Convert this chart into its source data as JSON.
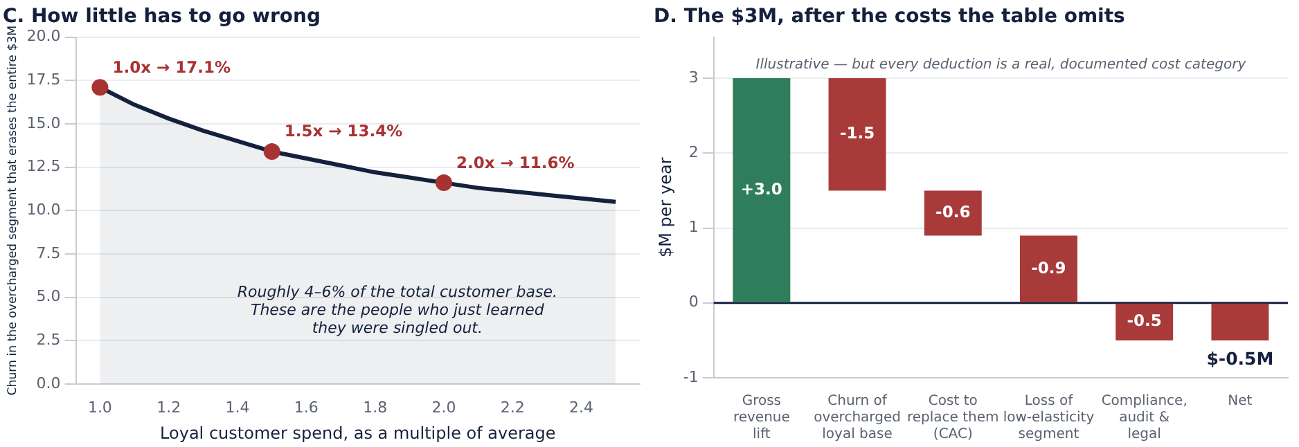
{
  "chart_data": [
    {
      "type": "area",
      "title": "C. How little has to go wrong",
      "xlabel": "Loyal customer spend, as a multiple of average",
      "ylabel": "Churn in the overcharged segment that erases the entire $3M",
      "xlim": [
        0.93,
        2.57
      ],
      "xticks": [
        {
          "value": 1,
          "label": "1.0"
        },
        {
          "value": 1.2,
          "label": "1.2"
        },
        {
          "value": 1.4,
          "label": "1.4"
        },
        {
          "value": 1.6,
          "label": "1.6"
        },
        {
          "value": 1.8,
          "label": "1.8"
        },
        {
          "value": 2,
          "label": "2.0"
        },
        {
          "value": 2.2,
          "label": "2.2"
        },
        {
          "value": 2.4,
          "label": "2.4"
        }
      ],
      "ylim": [
        0,
        20
      ],
      "yticks": [
        {
          "value": 0,
          "label": "0.0"
        },
        {
          "value": 2.5,
          "label": "2.5"
        },
        {
          "value": 5,
          "label": "5.0"
        },
        {
          "value": 7.5,
          "label": "7.5"
        },
        {
          "value": 10,
          "label": "10.0"
        },
        {
          "value": 12.5,
          "label": "12.5"
        },
        {
          "value": 15,
          "label": "15.0"
        },
        {
          "value": 17.5,
          "label": "17.5"
        },
        {
          "value": 20,
          "label": "20.0"
        }
      ],
      "grid": "y",
      "legend": false,
      "series": [
        {
          "type": "area",
          "color": "#14213d",
          "marker": "none",
          "x": [
            1.0,
            1.1,
            1.2,
            1.3,
            1.4,
            1.5,
            1.6,
            1.7,
            1.8,
            1.9,
            2.0,
            2.1,
            2.2,
            2.3,
            2.4,
            2.5
          ],
          "values": [
            17.1,
            16.1,
            15.3,
            14.6,
            14.0,
            13.4,
            13.0,
            12.6,
            12.2,
            11.9,
            11.6,
            11.3,
            11.1,
            10.9,
            10.7,
            10.5
          ]
        },
        {
          "type": "scatter",
          "color": "#a83232",
          "marker": "circle",
          "x": [
            1.0,
            1.5,
            2.0
          ],
          "values": [
            17.1,
            13.4,
            11.6
          ],
          "value_labels": [
            "1.0x → 17.1%",
            "1.5x → 13.4%",
            "2.0x → 11.6%"
          ]
        }
      ],
      "annotations": [
        "Roughly 4–6% of the total customer base.\nThese are the people who just learned\nthey were singled out."
      ]
    },
    {
      "type": "bar",
      "title": "D. The $3M, after the costs the table omits",
      "subtitle": "Illustrative — but every deduction is a real, documented cost category",
      "ylabel": "$M per year",
      "categories": [
        "Gross\nrevenue\nlift",
        "Churn of\novercharged\nloyal base",
        "Cost to\nreplace them\n(CAC)",
        "Loss of\nlow-elasticity\nsegment",
        "Compliance,\naudit &\nlegal",
        "Net"
      ],
      "values": [
        3.0,
        -1.5,
        -0.6,
        -0.9,
        -0.5,
        -0.5
      ],
      "base": [
        0,
        3.0,
        1.5,
        0.9,
        0,
        0
      ],
      "colors": [
        "#2e7d5b",
        "#a83a3a",
        "#a83a3a",
        "#a83a3a",
        "#a83a3a",
        "#a83a3a"
      ],
      "value_labels": [
        "+3.0",
        "-1.5",
        "-0.6",
        "-0.9",
        "-0.5",
        "$-0.5M"
      ],
      "ylim": [
        -1,
        3.55
      ],
      "yticks": [
        -1,
        0,
        1,
        2,
        3
      ],
      "grid": "y",
      "legend": false,
      "ref_lines": [
        {
          "axis": "y",
          "value": 0,
          "color": "#14213d"
        }
      ]
    }
  ]
}
